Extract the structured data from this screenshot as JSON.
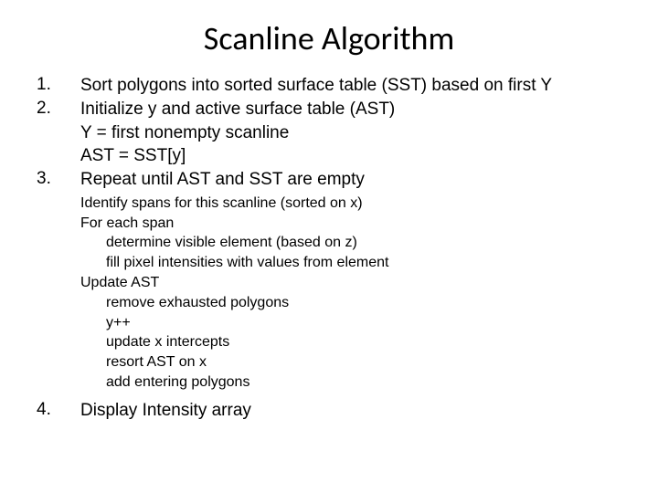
{
  "title": "Scanline Algorithm",
  "steps": {
    "s1": {
      "num": "1.",
      "text": "Sort polygons into sorted surface table (SST) based on first Y"
    },
    "s2": {
      "num": "2.",
      "text": "Initialize y and active surface table (AST)"
    },
    "s2a": "Y = first nonempty scanline",
    "s2b": "AST = SST[y]",
    "s3": {
      "num": "3.",
      "text": "Repeat until AST and SST are empty"
    },
    "s4": {
      "num": "4.",
      "text": "Display Intensity array"
    }
  },
  "details": {
    "d1": "Identify spans for this scanline (sorted on x)",
    "d2": "For each span",
    "d3": "determine visible element (based on z)",
    "d4": "fill pixel intensities with values from element",
    "d5": "Update AST",
    "d6": "remove exhausted polygons",
    "d7": "y++",
    "d8": "update x intercepts",
    "d9": "resort AST on x",
    "d10": "add entering polygons"
  },
  "style": {
    "background_color": "#ffffff",
    "text_color": "#000000",
    "title_fontsize": 36,
    "main_fontsize": 19,
    "detail_fontsize": 16,
    "title_font": "Calibri",
    "body_font": "Arial"
  }
}
